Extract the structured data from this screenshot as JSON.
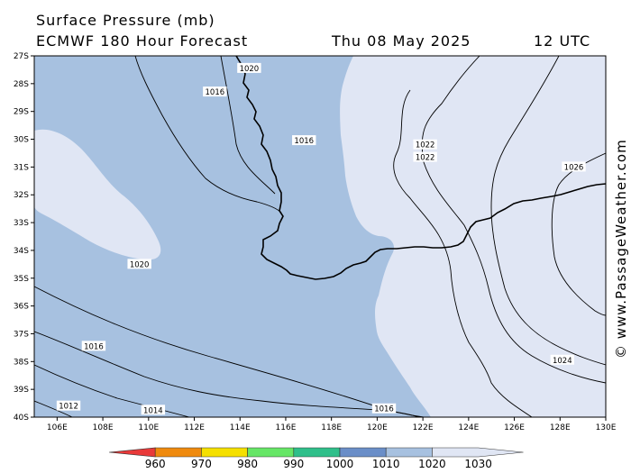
{
  "header": {
    "title": "Surface Pressure (mb)",
    "subtitle": "ECMWF 180 Hour Forecast",
    "date": "Thu 08 May 2025",
    "time": "12 UTC"
  },
  "credit": "© www.PassageWeather.com",
  "map": {
    "lat_range": [
      -40,
      -27
    ],
    "lon_range": [
      105,
      130
    ],
    "lat_ticks": [
      "27S",
      "28S",
      "29S",
      "30S",
      "31S",
      "32S",
      "33S",
      "34S",
      "35S",
      "36S",
      "37S",
      "38S",
      "39S",
      "40S"
    ],
    "lon_ticks": [
      "106E",
      "108E",
      "110E",
      "112E",
      "114E",
      "116E",
      "118E",
      "120E",
      "122E",
      "124E",
      "126E",
      "128E",
      "130E"
    ],
    "colors": {
      "band_1010_1020": "#a7c1e0",
      "band_1020_1030": "#e0e6f4",
      "isobar": "#000000",
      "coast": "#000000"
    },
    "isobar_labels": [
      {
        "text": "1016",
        "lon": 107.6,
        "lat": -37.45
      },
      {
        "text": "1012",
        "lon": 106.5,
        "lat": -39.6
      },
      {
        "text": "1014",
        "lon": 110.2,
        "lat": -39.75
      },
      {
        "text": "1016",
        "lon": 120.3,
        "lat": -39.7
      },
      {
        "text": "1016",
        "lon": 112.9,
        "lat": -28.3
      },
      {
        "text": "1016",
        "lon": 116.8,
        "lat": -30.05
      },
      {
        "text": "1020",
        "lon": 114.4,
        "lat": -27.45
      },
      {
        "text": "1020",
        "lon": 109.6,
        "lat": -34.5
      },
      {
        "text": "1022",
        "lon": 122.1,
        "lat": -30.2
      },
      {
        "text": "1022",
        "lon": 122.1,
        "lat": -30.65
      },
      {
        "text": "1024",
        "lon": 128.1,
        "lat": -37.95
      },
      {
        "text": "1026",
        "lon": 128.6,
        "lat": -31.0
      }
    ]
  },
  "legend": {
    "colors": [
      "#e93a3a",
      "#ef8a0e",
      "#f5e000",
      "#66e666",
      "#2fbf8a",
      "#6a8ec8",
      "#a7c1e0",
      "#e0e6f4"
    ],
    "labels": [
      "960",
      "970",
      "980",
      "990",
      "1000",
      "1010",
      "1020",
      "1030"
    ]
  }
}
